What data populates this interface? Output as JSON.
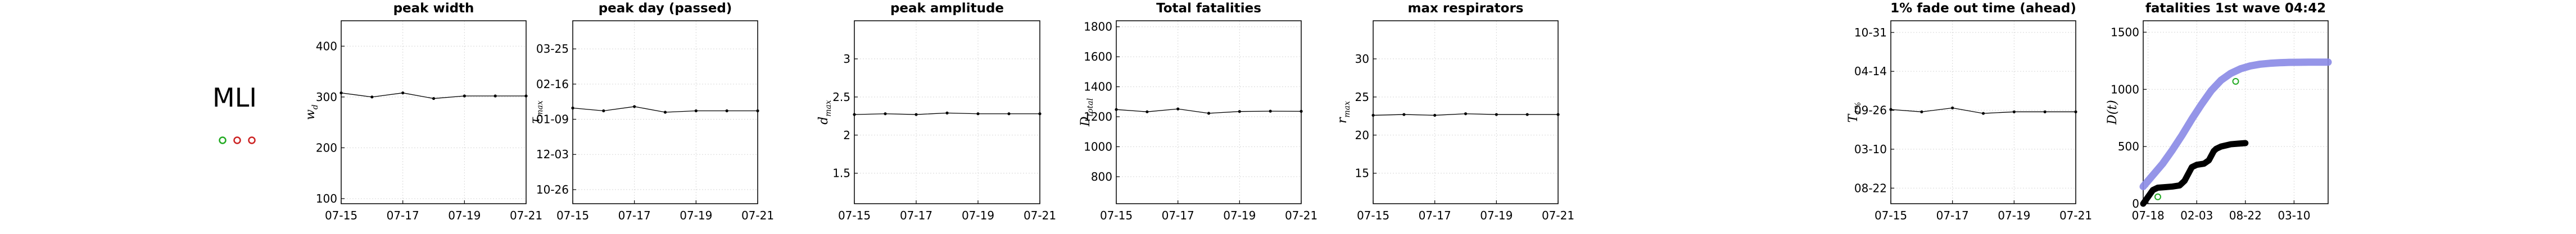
{
  "figure": {
    "row_label": "MLI",
    "legend_marker_colors": [
      "#22aa22",
      "#cc2222",
      "#cc2222"
    ]
  },
  "chart_data": [
    {
      "type": "line",
      "id": "peak_width",
      "title": "peak width",
      "ylabel": "w_d",
      "ylabel_plain": "w",
      "ylabel_sub": "d",
      "x": [
        "07-15",
        "07-16",
        "07-17",
        "07-18",
        "07-19",
        "07-20",
        "07-21"
      ],
      "xticks": [
        "07-15",
        "07-17",
        "07-19",
        "07-21"
      ],
      "ylim": [
        90,
        450
      ],
      "yticks": [
        100,
        200,
        300,
        400
      ],
      "ytick_labels": [
        "100",
        "200",
        "300",
        "400"
      ],
      "series": [
        {
          "values": [
            308,
            300,
            308,
            297,
            302,
            302,
            302
          ]
        }
      ],
      "grid": true
    },
    {
      "type": "line",
      "id": "peak_day",
      "title": "peak day (passed)",
      "ylabel": "τ_max",
      "ylabel_plain": "τ",
      "ylabel_sub": "max",
      "x": [
        "07-15",
        "07-16",
        "07-17",
        "07-18",
        "07-19",
        "07-20",
        "07-21"
      ],
      "xticks": [
        "07-15",
        "07-17",
        "07-19",
        "07-21"
      ],
      "ylim": [
        0,
        130
      ],
      "yticks": [
        10,
        35,
        60,
        85,
        110
      ],
      "ytick_labels": [
        "10-26",
        "12-03",
        "01-09",
        "02-16",
        "03-25"
      ],
      "series": [
        {
          "values": [
            68,
            66,
            69,
            65,
            66,
            66,
            66
          ]
        }
      ],
      "grid": true
    },
    {
      "type": "line",
      "id": "peak_amplitude",
      "title": "peak amplitude",
      "ylabel": "d_max",
      "ylabel_plain": "d",
      "ylabel_sub": "max",
      "x": [
        "07-15",
        "07-16",
        "07-17",
        "07-18",
        "07-19",
        "07-20",
        "07-21"
      ],
      "xticks": [
        "07-15",
        "07-17",
        "07-19",
        "07-21"
      ],
      "ylim": [
        1.1,
        3.5
      ],
      "yticks": [
        1.5,
        2,
        2.5,
        3
      ],
      "ytick_labels": [
        "1.5",
        "2",
        "2.5",
        "3"
      ],
      "series": [
        {
          "values": [
            2.27,
            2.28,
            2.27,
            2.29,
            2.28,
            2.28,
            2.28
          ]
        }
      ],
      "grid": true
    },
    {
      "type": "line",
      "id": "total_fatalities",
      "title": "Total fatalities",
      "ylabel": "D_total",
      "ylabel_plain": "D",
      "ylabel_sub": "total",
      "x": [
        "07-15",
        "07-16",
        "07-17",
        "07-18",
        "07-19",
        "07-20",
        "07-21"
      ],
      "xticks": [
        "07-15",
        "07-17",
        "07-19",
        "07-21"
      ],
      "ylim": [
        620,
        1840
      ],
      "yticks": [
        800,
        1000,
        1200,
        1400,
        1600,
        1800
      ],
      "ytick_labels": [
        "800",
        "1000",
        "1200",
        "1400",
        "1600",
        "1800"
      ],
      "series": [
        {
          "values": [
            1248,
            1233,
            1252,
            1223,
            1235,
            1237,
            1236
          ]
        }
      ],
      "grid": true
    },
    {
      "type": "line",
      "id": "max_respirators",
      "title": "max respirators",
      "ylabel": "r_max",
      "ylabel_plain": "r",
      "ylabel_sub": "max",
      "x": [
        "07-15",
        "07-16",
        "07-17",
        "07-18",
        "07-19",
        "07-20",
        "07-21"
      ],
      "xticks": [
        "07-15",
        "07-17",
        "07-19",
        "07-21"
      ],
      "ylim": [
        11,
        35
      ],
      "yticks": [
        15,
        20,
        25,
        30
      ],
      "ytick_labels": [
        "15",
        "20",
        "25",
        "30"
      ],
      "series": [
        {
          "values": [
            22.6,
            22.7,
            22.6,
            22.8,
            22.7,
            22.7,
            22.7
          ]
        }
      ],
      "grid": true
    },
    {
      "type": "line",
      "id": "fade_out_time",
      "title": "1% fade out time (ahead)",
      "ylabel": "T_1%",
      "ylabel_plain": "T",
      "ylabel_sub": "1%",
      "x": [
        "07-15",
        "07-16",
        "07-17",
        "07-18",
        "07-19",
        "07-20",
        "07-21"
      ],
      "xticks": [
        "07-15",
        "07-17",
        "07-19",
        "07-21"
      ],
      "ylim": [
        5,
        240
      ],
      "yticks": [
        25,
        75,
        125,
        175,
        225
      ],
      "ytick_labels": [
        "08-22",
        "03-10",
        "09-26",
        "04-14",
        "10-31"
      ],
      "series": [
        {
          "values": [
            126,
            123,
            128,
            121,
            123,
            123,
            123
          ]
        }
      ],
      "grid": true
    },
    {
      "type": "line",
      "id": "fatalities_1st_wave",
      "title": "fatalities 1st wave 04:42",
      "ylabel": "D(t)",
      "ylabel_plain": "D(t)",
      "ylabel_sub": "",
      "xticks": [
        "07-18",
        "02-03",
        "08-22",
        "03-10"
      ],
      "xtick_positions": [
        20,
        220,
        420,
        620
      ],
      "xlim": [
        0,
        760
      ],
      "ylim": [
        0,
        1600
      ],
      "yticks": [
        0,
        500,
        1000,
        1500
      ],
      "ytick_labels": [
        "0",
        "500",
        "1000",
        "1500"
      ],
      "series": [
        {
          "style": "band",
          "color": "#8a8ae6",
          "x": [
            0,
            40,
            80,
            120,
            160,
            200,
            240,
            280,
            320,
            360,
            400,
            440,
            480,
            520,
            560,
            600,
            640,
            680,
            720,
            760
          ],
          "y": [
            150,
            250,
            350,
            470,
            600,
            740,
            870,
            990,
            1080,
            1140,
            1180,
            1205,
            1220,
            1228,
            1233,
            1236,
            1237,
            1238,
            1238,
            1238
          ]
        },
        {
          "style": "thick",
          "color": "#000000",
          "x": [
            0,
            20,
            40,
            60,
            90,
            120,
            150,
            170,
            190,
            200,
            220,
            250,
            270,
            290,
            300,
            320,
            340,
            360,
            390,
            420
          ],
          "y": [
            0,
            60,
            120,
            140,
            145,
            150,
            160,
            200,
            280,
            320,
            340,
            350,
            380,
            460,
            480,
            500,
            510,
            520,
            525,
            530
          ]
        }
      ],
      "markers": [
        {
          "x": 60,
          "y": 60,
          "color": "#22aa22"
        },
        {
          "x": 380,
          "y": 1070,
          "color": "#22aa22"
        }
      ],
      "grid": true
    }
  ]
}
